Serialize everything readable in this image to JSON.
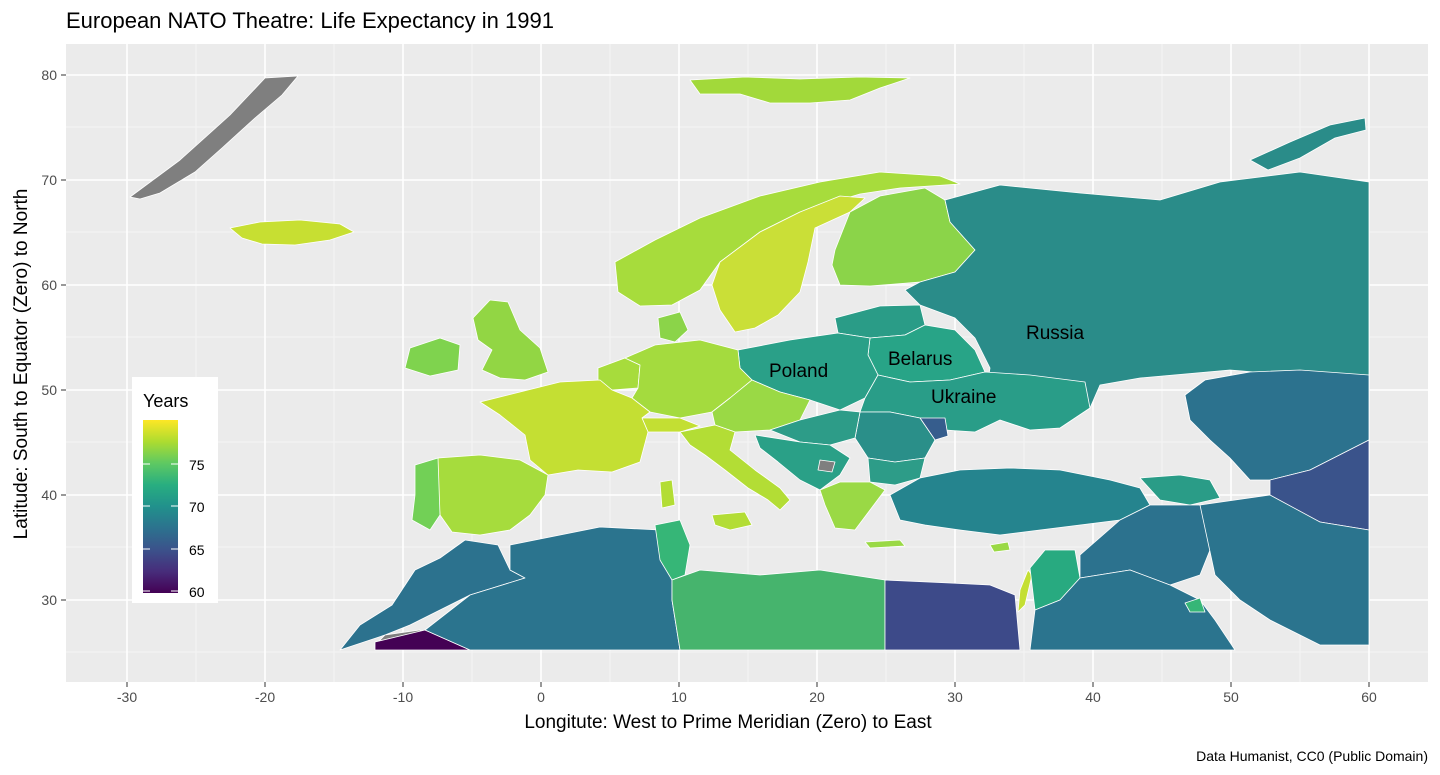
{
  "title": "European NATO Theatre: Life Expectancy in 1991",
  "caption": "Data Humanist, CC0 (Public Domain)",
  "axes": {
    "x_label": "Longitute: West to Prime Meridian (Zero) to East",
    "y_label": "Latitude: South to Equator (Zero) to North",
    "x_ticks": [
      "-30",
      "-20",
      "-10",
      "0",
      "10",
      "20",
      "30",
      "40",
      "50",
      "60"
    ],
    "y_ticks": [
      "30",
      "40",
      "50",
      "60",
      "70",
      "80"
    ]
  },
  "legend": {
    "title": "Years",
    "ticks": [
      "60",
      "65",
      "70",
      "75"
    ],
    "scale": "viridis"
  },
  "country_labels": [
    "Russia",
    "Belarus",
    "Poland",
    "Ukraine"
  ],
  "colors": {
    "panel": "#ebebeb",
    "grid": "#ffffff",
    "na": "#7f7f7f",
    "border": "#ffffff"
  }
}
